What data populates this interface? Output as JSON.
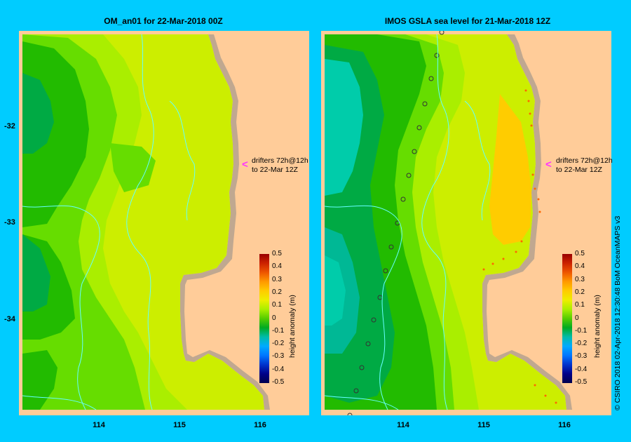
{
  "panels": [
    {
      "title": "OM_an01  for 22-Mar-2018 00Z",
      "annotation_line1": "drifters 72h@12h",
      "annotation_line2": "to 22-Mar 12Z"
    },
    {
      "title": "IMOS GSLA sea level  for 21-Mar-2018 12Z",
      "annotation_line1": "drifters 72h@12h",
      "annotation_line2": "to 22-Mar 12Z"
    }
  ],
  "axes": {
    "y_ticks": [
      "-32",
      "-33",
      "-34"
    ],
    "x_ticks": [
      "114",
      "115",
      "116"
    ]
  },
  "colorbar": {
    "title": "height anomaly (m)",
    "labels": [
      "0.5",
      "0.4",
      "0.3",
      "0.2",
      "0.1",
      "0",
      "-0.1",
      "-0.2",
      "-0.3",
      "-0.4",
      "-0.5"
    ],
    "colors": [
      "#990000",
      "#cc2200",
      "#ee5500",
      "#ff9900",
      "#ffcc00",
      "#eeee00",
      "#aaee00",
      "#55cc00",
      "#00aa22",
      "#00bbaa",
      "#00aaff",
      "#0077ff",
      "#0033cc",
      "#000088",
      "#00004d"
    ]
  },
  "credit": "© CSIRO 2018   02-Apr-2018 12:30:48 BoM OceanMAPS v3",
  "colors": {
    "land": "#ffcc99",
    "coast": "#c0a890",
    "frame": "#00ccff",
    "drifter_arrow": "#ff33ff",
    "track": "#66ffff"
  }
}
